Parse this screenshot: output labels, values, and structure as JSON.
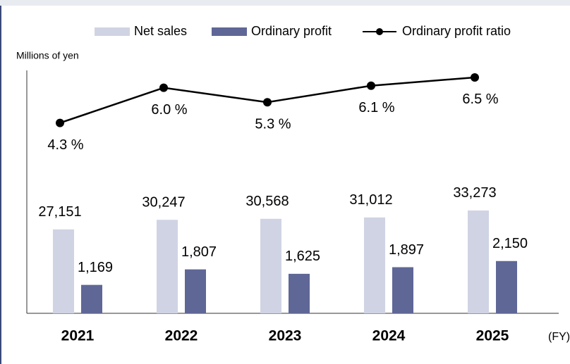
{
  "chart_data": {
    "type": "bar",
    "y_label": "Millions of yen",
    "x_label": "(FY)",
    "categories": [
      "2021",
      "2022",
      "2023",
      "2024",
      "2025"
    ],
    "series": [
      {
        "name": "Net sales",
        "color": "#d0d3e3",
        "type": "bar",
        "axis": "y",
        "values": [
          27151,
          30247,
          30568,
          31012,
          33273
        ],
        "value_labels": [
          "27,151",
          "30,247",
          "30,568",
          "31,012",
          "33,273"
        ]
      },
      {
        "name": "Ordinary profit",
        "color": "#5f6797",
        "type": "bar",
        "axis": "y2",
        "values": [
          1169,
          1807,
          1625,
          1897,
          2150
        ],
        "value_labels": [
          "1,169",
          "1,807",
          "1,625",
          "1,897",
          "2,150"
        ]
      },
      {
        "name": "Ordinary profit ratio",
        "color": "#000000",
        "type": "line",
        "axis": "y3",
        "values": [
          4.3,
          6.0,
          5.3,
          6.1,
          6.5
        ],
        "value_labels": [
          "4.3 %",
          "6.0 %",
          "5.3 %",
          "6.1 %",
          "6.5 %"
        ]
      }
    ],
    "ylim": [
      0,
      87700
    ],
    "y2lim": [
      0,
      11150
    ],
    "y3lim": [
      -4.9,
      8.2
    ]
  }
}
